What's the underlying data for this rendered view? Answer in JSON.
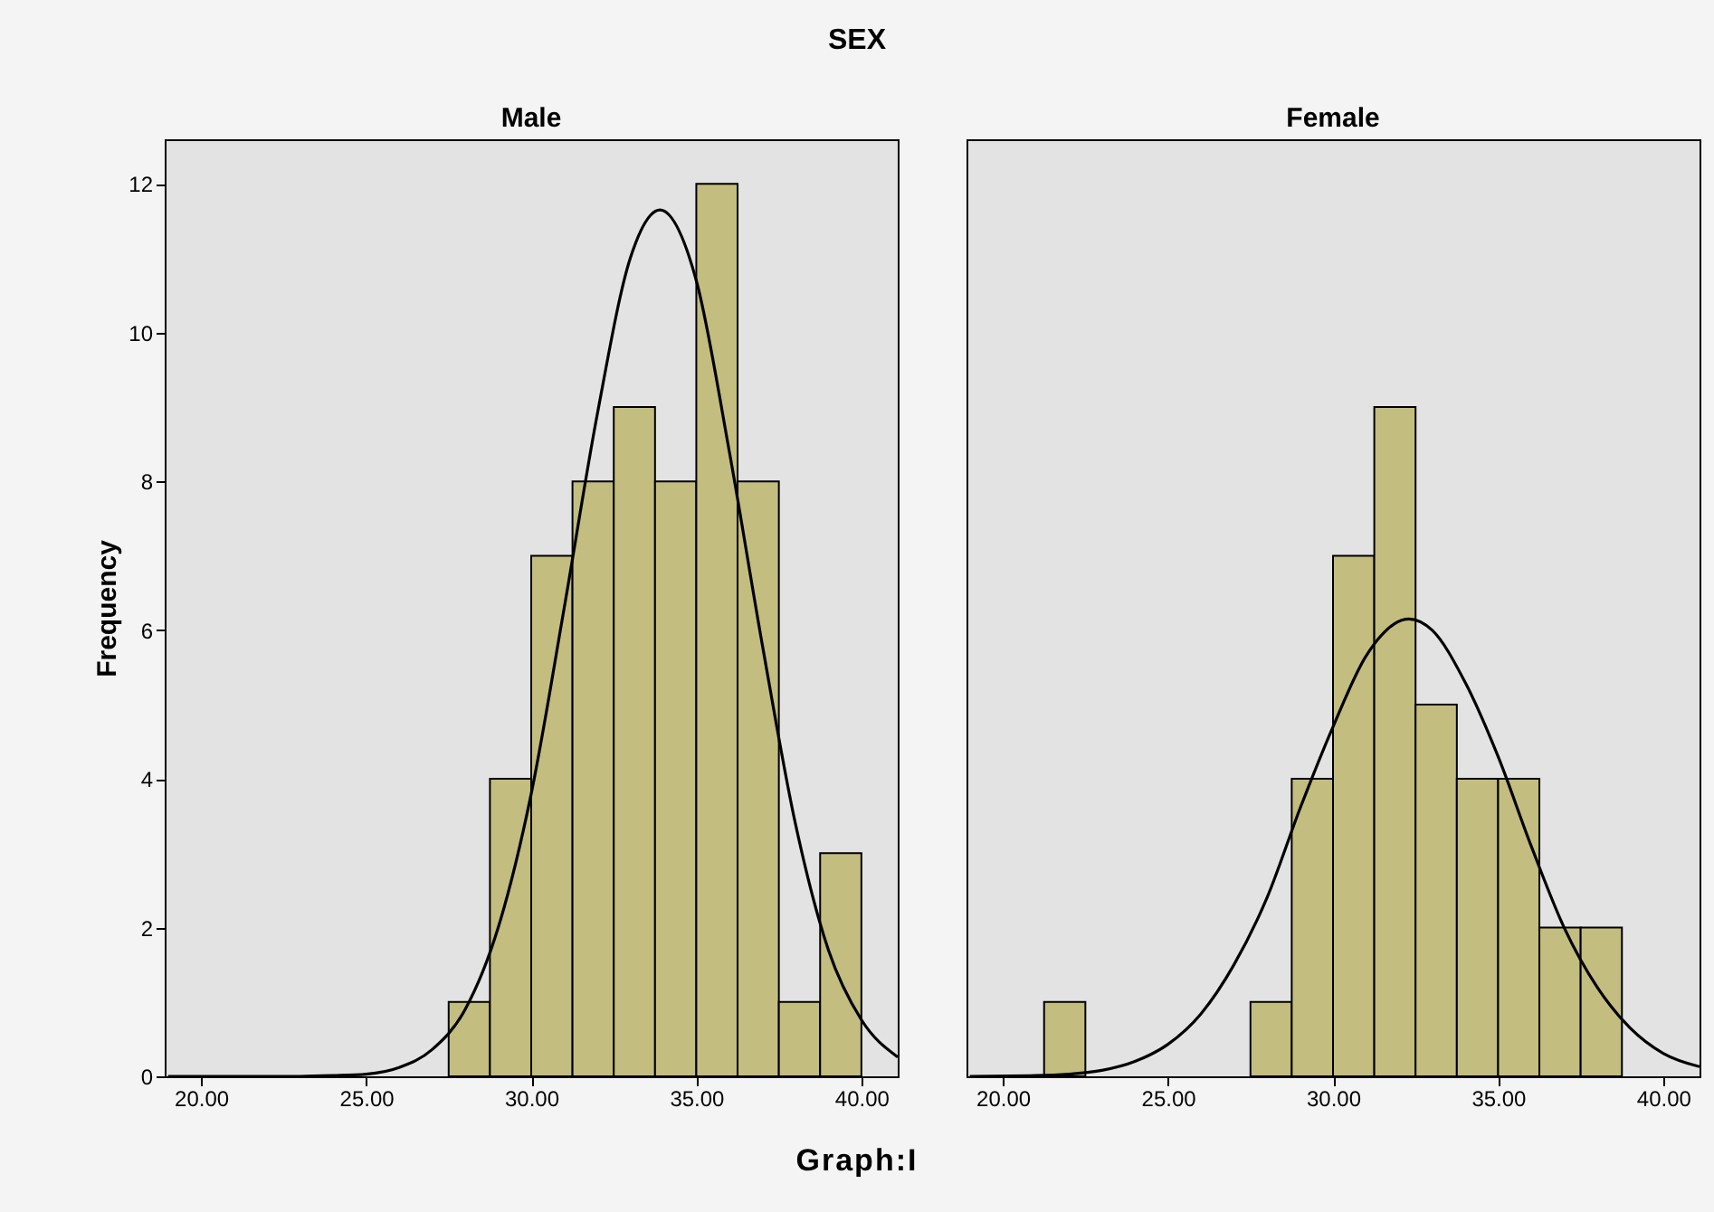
{
  "chart_data": [
    {
      "type": "histogram",
      "title": "Male",
      "ylabel": "Frequency",
      "annotations": [
        "SEX",
        "Graph:I"
      ],
      "color": "#c3bd80",
      "bins": [
        27.5,
        28.75,
        30,
        31.25,
        32.5,
        33.75,
        35,
        36.25,
        37.5,
        38.75,
        40
      ],
      "values": [
        1,
        4,
        7,
        8,
        9,
        8,
        12,
        8,
        1,
        3
      ],
      "series": [
        {
          "type": "line",
          "color": "#000000",
          "x": [
            19,
            23,
            24,
            25,
            26,
            27,
            28,
            29,
            30,
            31,
            32,
            33,
            33.9,
            35,
            36,
            37,
            38,
            39,
            40,
            41.1
          ],
          "values": [
            0,
            0,
            0.01,
            0.03,
            0.12,
            0.36,
            0.9,
            2.0,
            3.8,
            6.3,
            8.9,
            11.0,
            11.65,
            10.7,
            8.4,
            5.8,
            3.4,
            1.7,
            0.76,
            0.26
          ]
        }
      ],
      "xlim": [
        18.9,
        41.1
      ],
      "ylim": [
        0,
        12.6
      ],
      "xticks": [
        {
          "value": 20,
          "label": "20.00"
        },
        {
          "value": 25,
          "label": "25.00"
        },
        {
          "value": 30,
          "label": "30.00"
        },
        {
          "value": 35,
          "label": "35.00"
        },
        {
          "value": 40,
          "label": "40.00"
        }
      ],
      "yticks": [
        0,
        2,
        4,
        6,
        8,
        10,
        12
      ]
    },
    {
      "type": "histogram",
      "title": "Female",
      "color": "#c3bd80",
      "tick_labels": "x",
      "bins": [
        21.25,
        22.5,
        23.75,
        25,
        26.25,
        27.5,
        28.75,
        30,
        31.25,
        32.5,
        33.75,
        35,
        36.25,
        37.5,
        38.75
      ],
      "values": [
        1,
        0,
        0,
        0,
        0,
        1,
        4,
        7,
        9,
        5,
        4,
        4,
        2,
        2
      ],
      "series": [
        {
          "type": "line",
          "color": "#000000",
          "x": [
            19,
            21,
            22,
            23,
            24,
            25,
            26,
            27,
            28,
            29,
            30,
            31,
            32.3,
            33,
            34,
            35,
            36,
            37,
            38,
            39,
            40,
            41.1
          ],
          "values": [
            0,
            0.01,
            0.03,
            0.08,
            0.2,
            0.43,
            0.84,
            1.5,
            2.4,
            3.6,
            4.7,
            5.65,
            6.15,
            6.0,
            5.3,
            4.3,
            3.1,
            2.0,
            1.2,
            0.65,
            0.31,
            0.13
          ]
        }
      ],
      "xlim": [
        18.9,
        41.1
      ],
      "ylim": [
        0,
        12.6
      ],
      "xticks": [
        {
          "value": 20,
          "label": "20.00"
        },
        {
          "value": 25,
          "label": "25.00"
        },
        {
          "value": 30,
          "label": "30.00"
        },
        {
          "value": 35,
          "label": "35.00"
        },
        {
          "value": 40,
          "label": "40.00"
        }
      ],
      "yticks": [
        0,
        2,
        4,
        6,
        8,
        10,
        12
      ]
    }
  ]
}
